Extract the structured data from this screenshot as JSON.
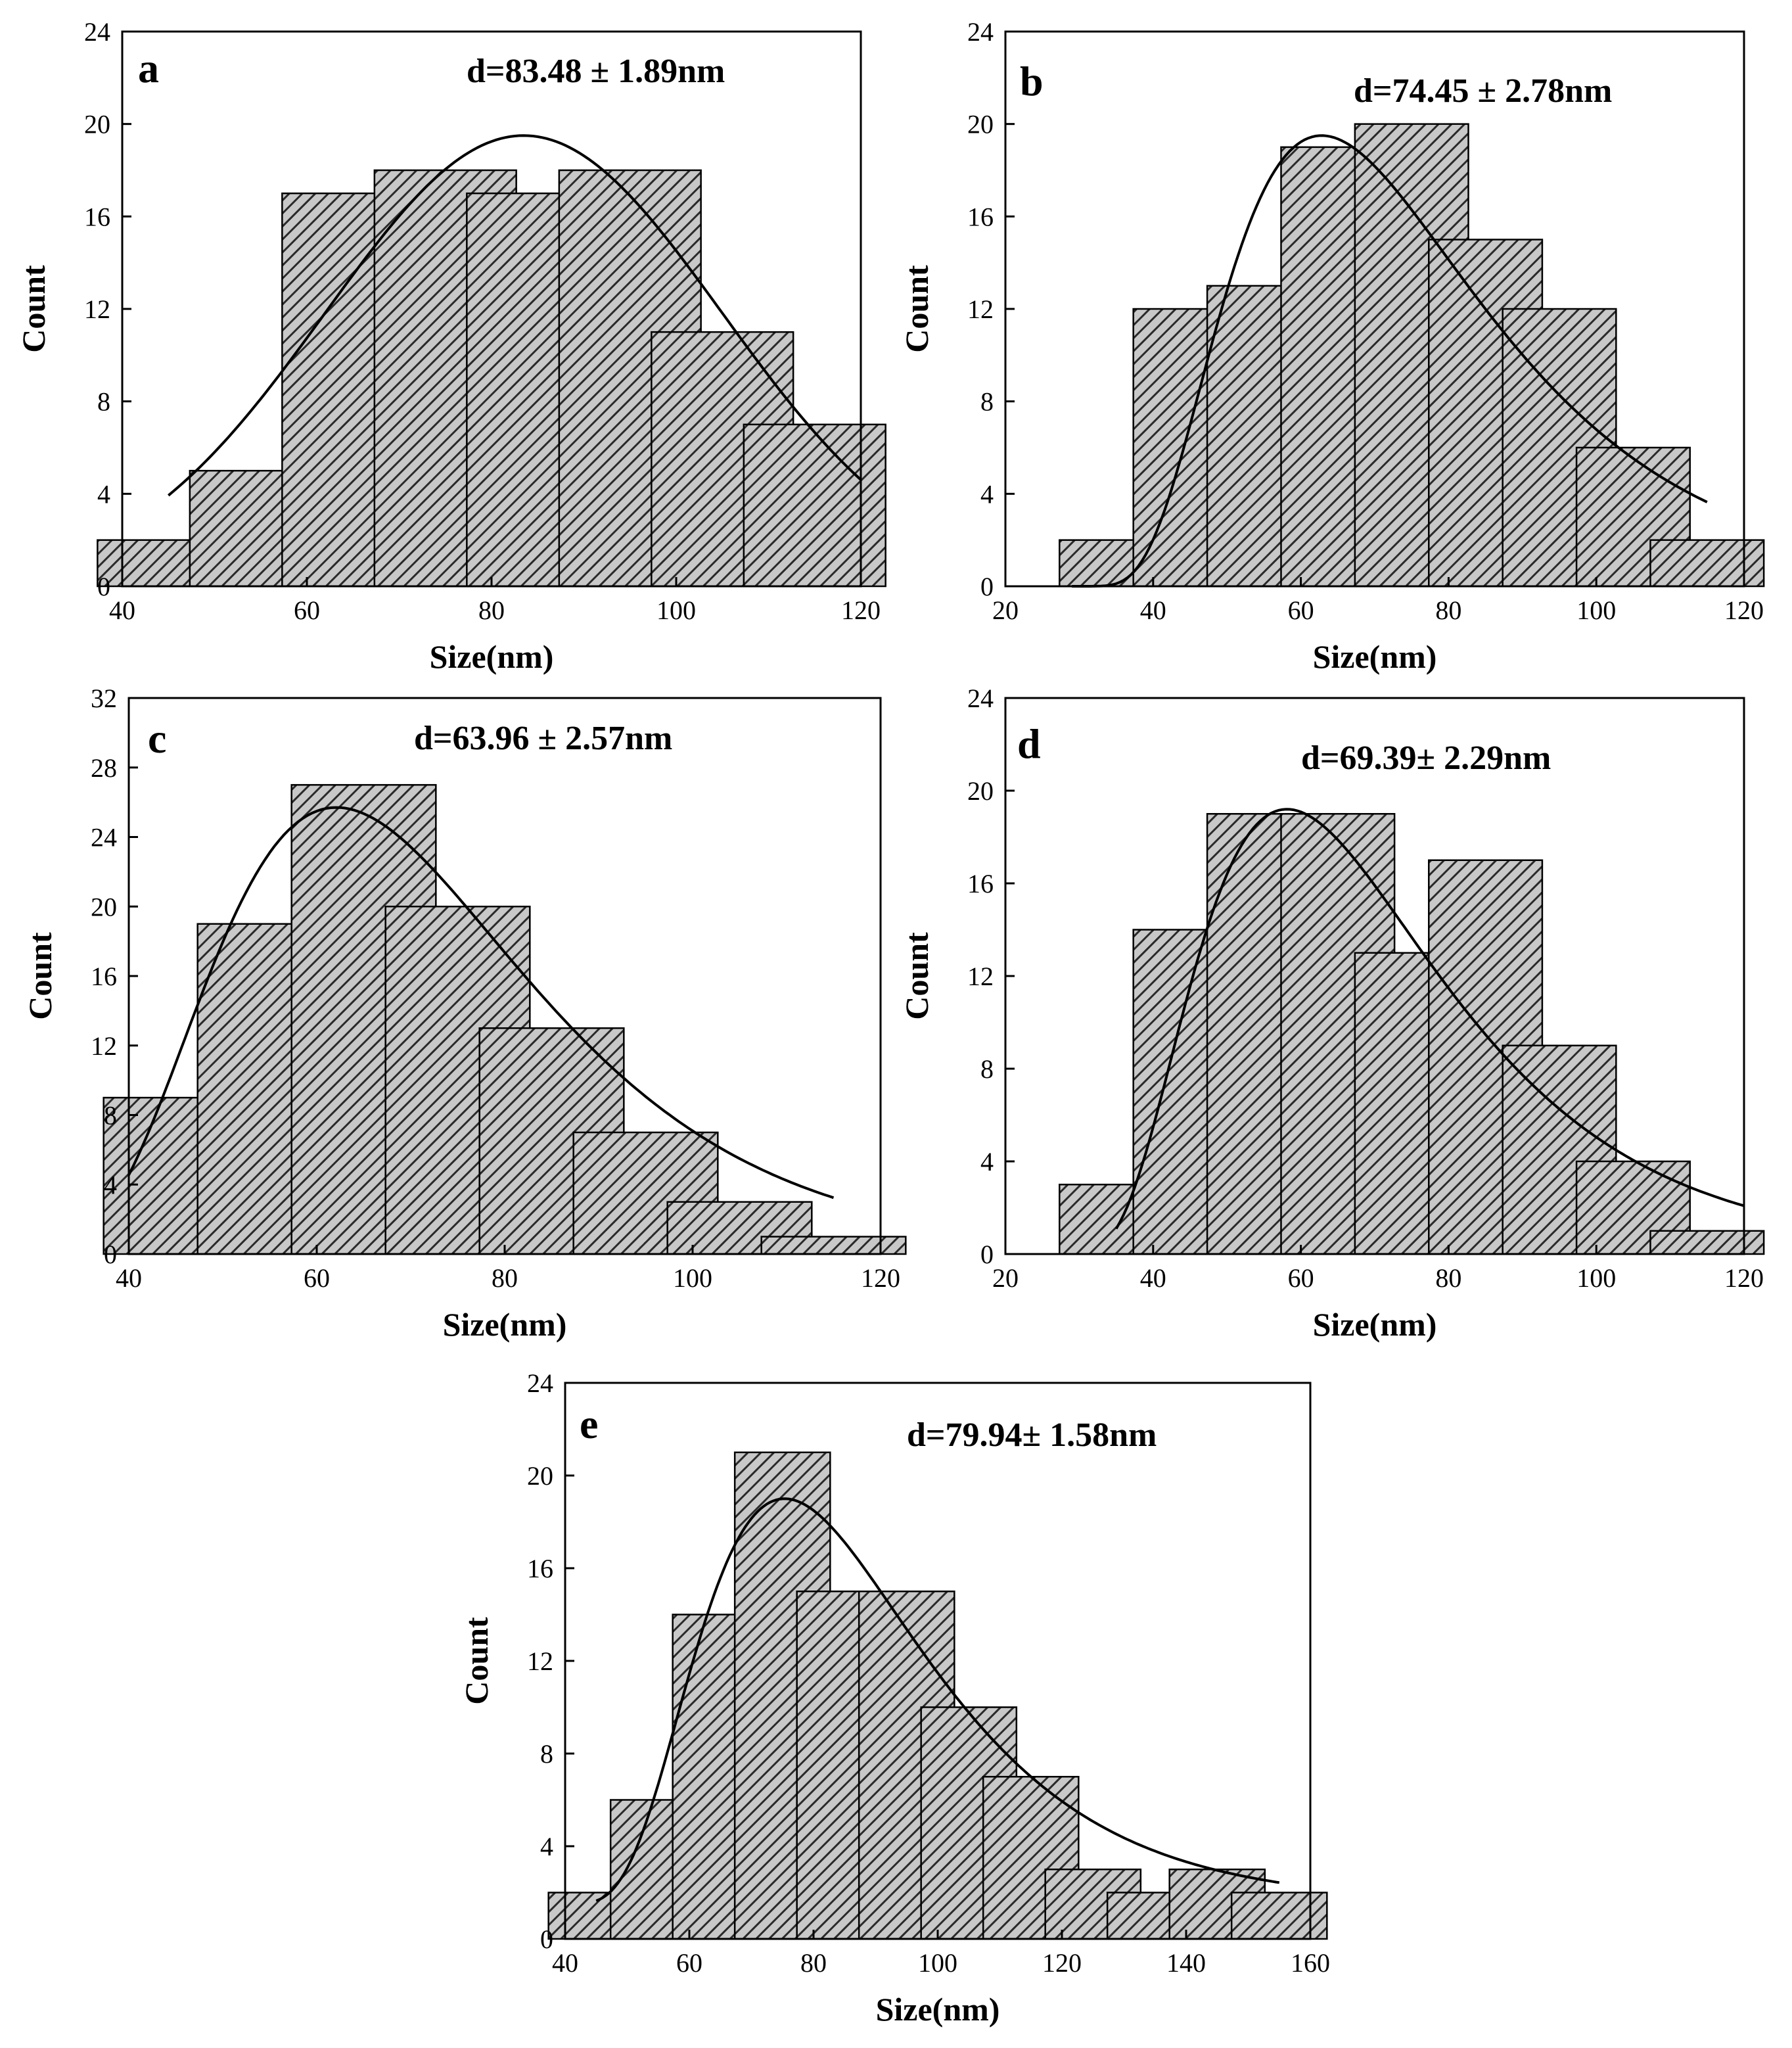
{
  "chart_data": [
    {
      "type": "bar",
      "panel": "a",
      "annotation": "d=83.48 ± 1.89nm",
      "xlabel": "Size(nm)",
      "ylabel": "Count",
      "xlim": [
        40,
        120
      ],
      "ylim": [
        0,
        24
      ],
      "xticks": [
        40,
        60,
        80,
        100,
        120
      ],
      "yticks": [
        0,
        4,
        8,
        12,
        16,
        20,
        24
      ],
      "bin_width": 16,
      "bars": [
        {
          "x": 45,
          "value": 2
        },
        {
          "x": 55,
          "value": 5
        },
        {
          "x": 65,
          "value": 17
        },
        {
          "x": 75,
          "value": 18
        },
        {
          "x": 85,
          "value": 17
        },
        {
          "x": 95,
          "value": 18
        },
        {
          "x": 105,
          "value": 11
        },
        {
          "x": 115,
          "value": 7
        }
      ],
      "fit": {
        "type": "gaussian",
        "mean": 83.48,
        "sigma": 21.5,
        "amplitude": 19.5,
        "x_range": [
          45,
          120
        ]
      }
    },
    {
      "type": "bar",
      "panel": "b",
      "annotation": "d=74.45 ± 2.78nm",
      "xlabel": "Size(nm)",
      "ylabel": "Count",
      "xlim": [
        20,
        120
      ],
      "ylim": [
        0,
        24
      ],
      "xticks": [
        20,
        40,
        60,
        80,
        100,
        120
      ],
      "yticks": [
        0,
        4,
        8,
        12,
        16,
        20,
        24
      ],
      "bin_width": 16,
      "bars": [
        {
          "x": 35,
          "value": 2
        },
        {
          "x": 45,
          "value": 12
        },
        {
          "x": 55,
          "value": 13
        },
        {
          "x": 65,
          "value": 19
        },
        {
          "x": 75,
          "value": 20
        },
        {
          "x": 85,
          "value": 15
        },
        {
          "x": 95,
          "value": 12
        },
        {
          "x": 105,
          "value": 6
        },
        {
          "x": 115,
          "value": 2
        }
      ],
      "fit": {
        "type": "lognormal",
        "peak_x": 66.5,
        "peak_y": 19.5,
        "x_range": [
          29,
          115
        ],
        "x0": 28,
        "mu": 3.8,
        "s": 0.5
      }
    },
    {
      "type": "bar",
      "panel": "c",
      "annotation": "d=63.96 ± 2.57nm",
      "xlabel": "Size(nm)",
      "ylabel": "Count",
      "xlim": [
        40,
        120
      ],
      "ylim": [
        0,
        32
      ],
      "xticks": [
        40,
        60,
        80,
        100,
        120
      ],
      "yticks": [
        0,
        4,
        8,
        12,
        16,
        20,
        24,
        28,
        32
      ],
      "bin_width": 16,
      "bars": [
        {
          "x": 45,
          "value": 9
        },
        {
          "x": 55,
          "value": 19
        },
        {
          "x": 65,
          "value": 27
        },
        {
          "x": 75,
          "value": 20
        },
        {
          "x": 85,
          "value": 13
        },
        {
          "x": 95,
          "value": 7
        },
        {
          "x": 105,
          "value": 3
        },
        {
          "x": 115,
          "value": 1
        }
      ],
      "fit": {
        "type": "lognormal",
        "peak_x": 64.5,
        "peak_y": 25.7,
        "x_range": [
          40,
          115
        ],
        "x0": 20,
        "mu": 3.9,
        "s": 0.4
      }
    },
    {
      "type": "bar",
      "panel": "d",
      "annotation": "d=69.39± 2.29nm",
      "xlabel": "Size(nm)",
      "ylabel": "Count",
      "xlim": [
        20,
        120
      ],
      "ylim": [
        0,
        24
      ],
      "xticks": [
        20,
        40,
        60,
        80,
        100,
        120
      ],
      "yticks": [
        0,
        4,
        8,
        12,
        16,
        20,
        24
      ],
      "bin_width": 16,
      "bars": [
        {
          "x": 35,
          "value": 3
        },
        {
          "x": 45,
          "value": 14
        },
        {
          "x": 55,
          "value": 19
        },
        {
          "x": 65,
          "value": 19
        },
        {
          "x": 75,
          "value": 13
        },
        {
          "x": 85,
          "value": 17
        },
        {
          "x": 95,
          "value": 9
        },
        {
          "x": 105,
          "value": 4
        },
        {
          "x": 115,
          "value": 1
        }
      ],
      "fit": {
        "type": "lognormal",
        "peak_x": 62,
        "peak_y": 19.2,
        "x_range": [
          35,
          120
        ],
        "x0": 25,
        "mu": 3.75,
        "s": 0.5
      }
    },
    {
      "type": "bar",
      "panel": "e",
      "annotation": "d=79.94± 1.58nm",
      "xlabel": "Size(nm)",
      "ylabel": "Count",
      "xlim": [
        40,
        160
      ],
      "ylim": [
        0,
        24
      ],
      "xticks": [
        40,
        60,
        80,
        100,
        120,
        140,
        160
      ],
      "yticks": [
        0,
        4,
        8,
        12,
        16,
        20,
        24
      ],
      "bin_width": 16,
      "bars": [
        {
          "x": 45,
          "value": 2
        },
        {
          "x": 55,
          "value": 6
        },
        {
          "x": 65,
          "value": 14
        },
        {
          "x": 75,
          "value": 21
        },
        {
          "x": 85,
          "value": 15
        },
        {
          "x": 95,
          "value": 15
        },
        {
          "x": 105,
          "value": 10
        },
        {
          "x": 115,
          "value": 7
        },
        {
          "x": 125,
          "value": 3
        },
        {
          "x": 135,
          "value": 2
        },
        {
          "x": 145,
          "value": 3
        },
        {
          "x": 155,
          "value": 2
        }
      ],
      "fit": {
        "type": "lognormal",
        "peak_x": 79,
        "peak_y": 19,
        "x_range": [
          45,
          155
        ],
        "x0": 35,
        "mu": 3.9,
        "s": 0.45,
        "baseline": 1.5
      }
    }
  ]
}
